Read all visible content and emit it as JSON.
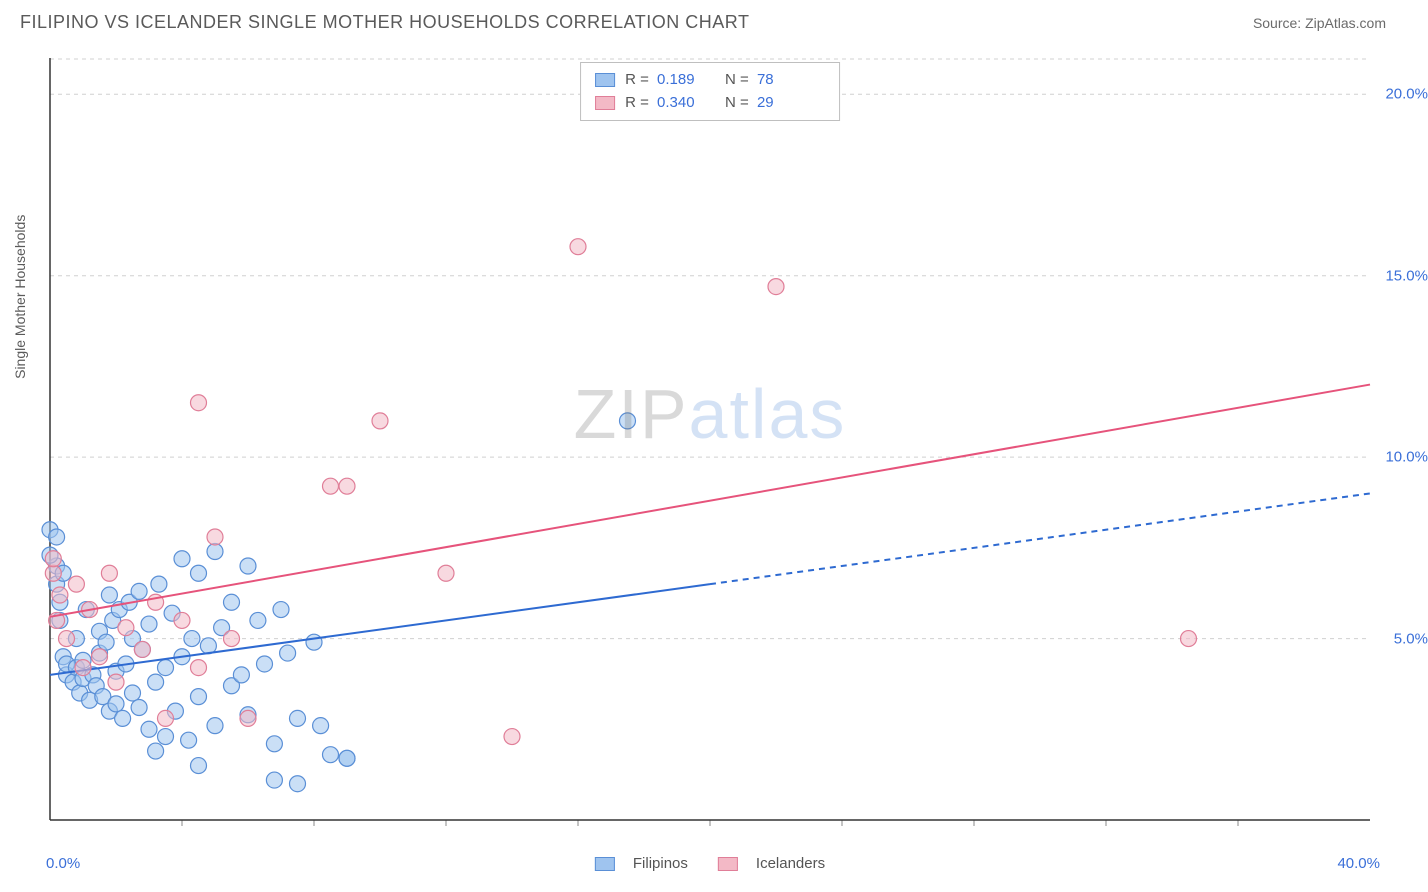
{
  "header": {
    "title": "FILIPINO VS ICELANDER SINGLE MOTHER HOUSEHOLDS CORRELATION CHART",
    "source_prefix": "Source: ",
    "source_name": "ZipAtlas.com"
  },
  "watermark": {
    "part1": "ZIP",
    "part2": "atlas"
  },
  "chart": {
    "type": "scatter",
    "ylabel": "Single Mother Households",
    "xlim": [
      0,
      40
    ],
    "ylim": [
      0,
      21
    ],
    "x_tick_min_label": "0.0%",
    "x_tick_max_label": "40.0%",
    "y_ticks": [
      {
        "v": 5.0,
        "label": "5.0%"
      },
      {
        "v": 10.0,
        "label": "10.0%"
      },
      {
        "v": 15.0,
        "label": "15.0%"
      },
      {
        "v": 20.0,
        "label": "20.0%"
      }
    ],
    "x_minor_tick_step": 4.0,
    "background_color": "#ffffff",
    "grid_color": "#d0d0d0",
    "axis_color": "#333333",
    "tick_label_color": "#3a6fd8",
    "series": [
      {
        "name": "Filipinos",
        "fill": "#9fc4ef",
        "stroke": "#5a8fd6",
        "fill_opacity": 0.55,
        "marker_r": 8,
        "trend": {
          "x0": 0,
          "y0": 4.0,
          "x1": 40,
          "y1": 9.0,
          "solid_until_x": 20,
          "color": "#2e6ad1",
          "width": 2
        },
        "R": "0.189",
        "N": "78",
        "points": [
          [
            0.0,
            8.0
          ],
          [
            0.2,
            6.5
          ],
          [
            0.2,
            7.0
          ],
          [
            0.3,
            5.5
          ],
          [
            0.3,
            6.0
          ],
          [
            0.4,
            4.5
          ],
          [
            0.5,
            4.0
          ],
          [
            0.5,
            4.3
          ],
          [
            0.7,
            3.8
          ],
          [
            0.8,
            4.2
          ],
          [
            0.8,
            5.0
          ],
          [
            0.9,
            3.5
          ],
          [
            1.0,
            3.9
          ],
          [
            1.0,
            4.4
          ],
          [
            1.1,
            5.8
          ],
          [
            1.2,
            3.3
          ],
          [
            1.3,
            4.0
          ],
          [
            1.4,
            3.7
          ],
          [
            1.5,
            5.2
          ],
          [
            1.5,
            4.6
          ],
          [
            1.6,
            3.4
          ],
          [
            1.7,
            4.9
          ],
          [
            1.8,
            3.0
          ],
          [
            1.9,
            5.5
          ],
          [
            2.0,
            3.2
          ],
          [
            2.0,
            4.1
          ],
          [
            2.1,
            5.8
          ],
          [
            2.2,
            2.8
          ],
          [
            2.3,
            4.3
          ],
          [
            2.4,
            6.0
          ],
          [
            2.5,
            3.5
          ],
          [
            2.5,
            5.0
          ],
          [
            2.7,
            3.1
          ],
          [
            2.8,
            4.7
          ],
          [
            3.0,
            2.5
          ],
          [
            3.0,
            5.4
          ],
          [
            3.2,
            3.8
          ],
          [
            3.3,
            6.5
          ],
          [
            3.5,
            2.3
          ],
          [
            3.5,
            4.2
          ],
          [
            3.7,
            5.7
          ],
          [
            3.8,
            3.0
          ],
          [
            4.0,
            4.5
          ],
          [
            4.0,
            7.2
          ],
          [
            4.2,
            2.2
          ],
          [
            4.3,
            5.0
          ],
          [
            4.5,
            3.4
          ],
          [
            4.5,
            6.8
          ],
          [
            4.8,
            4.8
          ],
          [
            5.0,
            2.6
          ],
          [
            5.0,
            7.4
          ],
          [
            5.2,
            5.3
          ],
          [
            5.5,
            3.7
          ],
          [
            5.5,
            6.0
          ],
          [
            5.8,
            4.0
          ],
          [
            6.0,
            7.0
          ],
          [
            6.0,
            2.9
          ],
          [
            6.3,
            5.5
          ],
          [
            6.5,
            4.3
          ],
          [
            6.8,
            2.1
          ],
          [
            7.0,
            5.8
          ],
          [
            7.2,
            4.6
          ],
          [
            7.5,
            2.8
          ],
          [
            7.5,
            1.0
          ],
          [
            8.0,
            4.9
          ],
          [
            8.2,
            2.6
          ],
          [
            8.5,
            1.8
          ],
          [
            9.0,
            1.7
          ],
          [
            9.0,
            1.7
          ],
          [
            6.8,
            1.1
          ],
          [
            3.2,
            1.9
          ],
          [
            4.5,
            1.5
          ],
          [
            2.7,
            6.3
          ],
          [
            1.8,
            6.2
          ],
          [
            0.2,
            7.8
          ],
          [
            0.0,
            7.3
          ],
          [
            0.4,
            6.8
          ],
          [
            17.5,
            11.0
          ]
        ]
      },
      {
        "name": "Icelanders",
        "fill": "#f3b9c6",
        "stroke": "#e07e98",
        "fill_opacity": 0.55,
        "marker_r": 8,
        "trend": {
          "x0": 0,
          "y0": 5.6,
          "x1": 40,
          "y1": 12.0,
          "solid_until_x": 40,
          "color": "#e6537b",
          "width": 2
        },
        "R": "0.340",
        "N": "29",
        "points": [
          [
            0.1,
            6.8
          ],
          [
            0.1,
            7.2
          ],
          [
            0.2,
            5.5
          ],
          [
            0.3,
            6.2
          ],
          [
            0.5,
            5.0
          ],
          [
            0.8,
            6.5
          ],
          [
            1.0,
            4.2
          ],
          [
            1.2,
            5.8
          ],
          [
            1.5,
            4.5
          ],
          [
            1.8,
            6.8
          ],
          [
            2.0,
            3.8
          ],
          [
            2.3,
            5.3
          ],
          [
            2.8,
            4.7
          ],
          [
            3.2,
            6.0
          ],
          [
            3.5,
            2.8
          ],
          [
            4.0,
            5.5
          ],
          [
            4.5,
            4.2
          ],
          [
            4.5,
            11.5
          ],
          [
            5.0,
            7.8
          ],
          [
            5.5,
            5.0
          ],
          [
            6.0,
            2.8
          ],
          [
            8.5,
            9.2
          ],
          [
            9.0,
            9.2
          ],
          [
            10.0,
            11.0
          ],
          [
            12.0,
            6.8
          ],
          [
            14.0,
            2.3
          ],
          [
            16.0,
            15.8
          ],
          [
            22.0,
            14.7
          ],
          [
            34.5,
            5.0
          ]
        ]
      }
    ]
  },
  "legend_bottom": [
    {
      "label": "Filipinos",
      "fill": "#9fc4ef",
      "stroke": "#5a8fd6"
    },
    {
      "label": "Icelanders",
      "fill": "#f3b9c6",
      "stroke": "#e07e98"
    }
  ]
}
